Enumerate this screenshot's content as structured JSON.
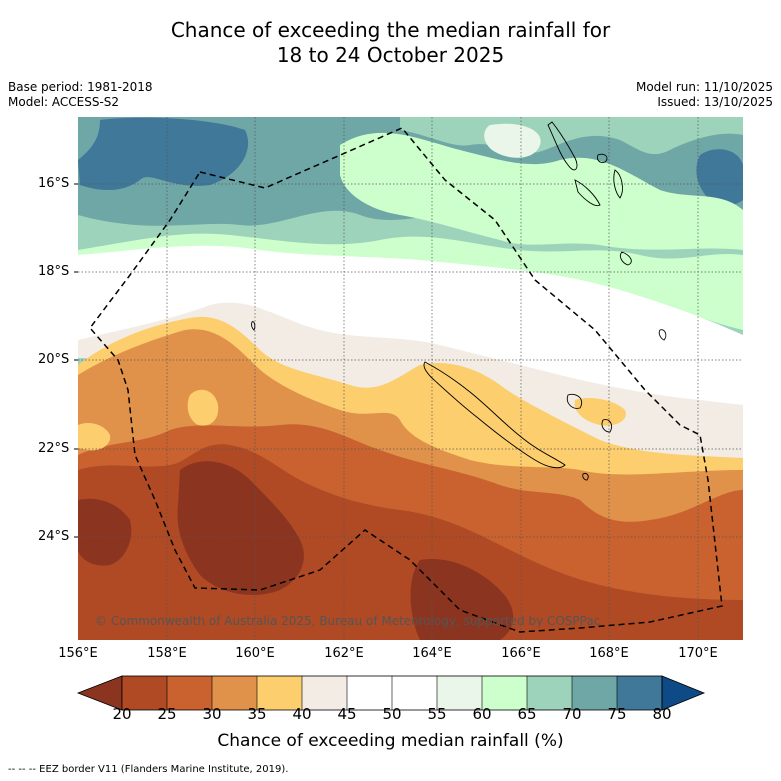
{
  "title_line1": "Chance of exceeding the median rainfall for",
  "title_line2": "18 to 24 October 2025",
  "meta_left": {
    "base_period": "Base period: 1981-2018",
    "model": "Model: ACCESS-S2"
  },
  "meta_right": {
    "model_run": "Model run: 11/10/2025",
    "issued": "Issued: 13/10/2025"
  },
  "lat_ticks": [
    "16°S",
    "18°S",
    "20°S",
    "22°S",
    "24°S"
  ],
  "lon_ticks": [
    "156°E",
    "158°E",
    "160°E",
    "162°E",
    "164°E",
    "166°E",
    "168°E",
    "170°E"
  ],
  "copyright": "© Commonwealth of Australia 2025, Bureau of Meteorology, supported by COSPPac",
  "colorbar": {
    "title": "Chance of exceeding median rainfall (%)",
    "ticks": [
      "20",
      "25",
      "30",
      "35",
      "40",
      "45",
      "50",
      "55",
      "60",
      "65",
      "70",
      "75",
      "80"
    ],
    "colors": {
      "lt20": "#8b3520",
      "c20_25": "#b04a24",
      "c25_30": "#c9622f",
      "c30_35": "#e0924a",
      "c35_40": "#fcce6e",
      "c40_45": "#f2ece4",
      "c45_50": "#ffffff",
      "c50_55": "#ffffff",
      "c55_60": "#e9f6e9",
      "c60_65": "#ccffcc",
      "c65_70": "#9ed3bb",
      "c70_75": "#6fa6a6",
      "c75_80": "#3f7899",
      "gt80": "#0d4a86"
    }
  },
  "footnote": "--  --  -- EEZ border V11 (Flanders Marine Institute, 2019)."
}
